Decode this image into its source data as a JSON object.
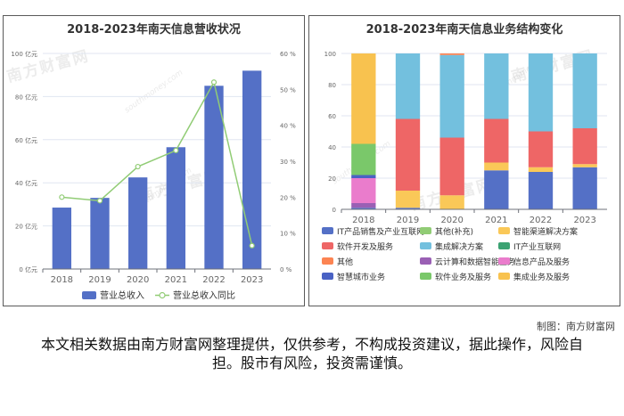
{
  "chart_data": [
    {
      "type": "bar+line",
      "title": "2018-2023年南天信息营收状况",
      "categories": [
        "2018",
        "2019",
        "2020",
        "2021",
        "2022",
        "2023"
      ],
      "series": [
        {
          "name": "营业总收入",
          "kind": "bar",
          "axis": "left",
          "color": "#5470c6",
          "values": [
            28.5,
            33,
            42.5,
            56.5,
            85,
            92
          ]
        },
        {
          "name": "营业总收入同比",
          "kind": "line",
          "axis": "right",
          "color": "#91cc75",
          "values": [
            20,
            19,
            28.5,
            33,
            52,
            6.5
          ]
        }
      ],
      "left_axis": {
        "ylim": [
          0,
          100
        ],
        "ticks": [
          "0 亿元",
          "20 亿元",
          "40 亿元",
          "60 亿元",
          "80 亿元",
          "100 亿元"
        ]
      },
      "right_axis": {
        "ylim": [
          0,
          60
        ],
        "ticks": [
          "0 %",
          "10 %",
          "20 %",
          "30 %",
          "40 %",
          "50 %",
          "60 %"
        ]
      },
      "legend": [
        "营业总收入",
        "营业总收入同比"
      ]
    },
    {
      "type": "stacked-bar-100",
      "title": "2018-2023年南天信息业务结构变化",
      "categories": [
        "2018",
        "2019",
        "2020",
        "2021",
        "2022",
        "2023"
      ],
      "ylim": [
        0,
        100
      ],
      "y_ticks": [
        "0",
        "20",
        "40",
        "60",
        "80",
        "100"
      ],
      "series": [
        {
          "name": "IT产品销售及产业互联网",
          "color": "#5470c6",
          "values": [
            1,
            1,
            0,
            25,
            24,
            27
          ]
        },
        {
          "name": "其他(补充)",
          "color": "#91cc75",
          "values": [
            0,
            0,
            0,
            0,
            0,
            0
          ]
        },
        {
          "name": "智能渠道解决方案",
          "color": "#fac858",
          "values": [
            0,
            11,
            9,
            5,
            3,
            2
          ]
        },
        {
          "name": "软件开发及服务",
          "color": "#ee6666",
          "values": [
            0,
            46,
            37,
            28,
            23,
            23
          ]
        },
        {
          "name": "集成解决方案",
          "color": "#73c0de",
          "values": [
            0,
            42,
            53,
            42,
            50,
            48
          ]
        },
        {
          "name": "IT产业互联网",
          "color": "#3ba272",
          "values": [
            0,
            0,
            0,
            0,
            0,
            0
          ]
        },
        {
          "name": "其他",
          "color": "#fc8452",
          "values": [
            0,
            0,
            1,
            0,
            0,
            0
          ]
        },
        {
          "name": "云计算和数据智能业务",
          "color": "#9a60b4",
          "values": [
            3,
            0,
            0,
            0,
            0,
            0
          ]
        },
        {
          "name": "信息产品及服务",
          "color": "#ea7ccc",
          "values": [
            16,
            0,
            0,
            0,
            0,
            0
          ]
        },
        {
          "name": "智慧城市业务",
          "color": "#4a62c4",
          "values": [
            2,
            0,
            0,
            0,
            0,
            0
          ]
        },
        {
          "name": "软件业务及服务",
          "color": "#7ac86a",
          "values": [
            20,
            0,
            0,
            0,
            0,
            0
          ]
        },
        {
          "name": "集成业务及服务",
          "color": "#f8c24f",
          "values": [
            58,
            0,
            0,
            0,
            0,
            0
          ]
        }
      ]
    }
  ],
  "watermark": {
    "text": "南方财富网",
    "sub": "southmoney.com"
  },
  "credit": "制图：南方财富网",
  "disclaimer": "本文相关数据由南方财富网整理提供，仅供参考，不构成投资建议，据此操作，风险自担。股市有风险，投资需谨慎。"
}
